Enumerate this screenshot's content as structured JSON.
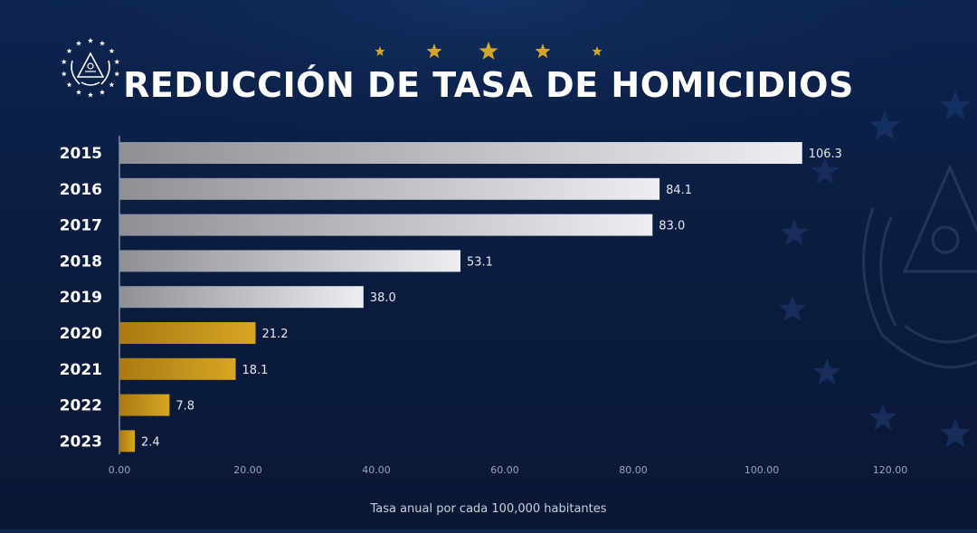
{
  "chart_data": {
    "type": "bar",
    "orientation": "horizontal",
    "title": "REDUCCIÓN DE TASA DE HOMICIDIOS",
    "xlabel": "Tasa anual por cada 100,000 habitantes",
    "categories": [
      "2015",
      "2016",
      "2017",
      "2018",
      "2019",
      "2020",
      "2021",
      "2022",
      "2023"
    ],
    "values": [
      106.3,
      84.1,
      83.0,
      53.1,
      38.0,
      21.2,
      18.1,
      7.8,
      2.4
    ],
    "value_labels": [
      "106.3",
      "84.1",
      "83.0",
      "53.1",
      "38.0",
      "21.2",
      "18.1",
      "7.8",
      "2.4"
    ],
    "xlim": [
      0,
      120
    ],
    "xticks": [
      "0.00",
      "20.00",
      "40.00",
      "60.00",
      "80.00",
      "100.00",
      "120.00"
    ],
    "grid": false,
    "highlight_from_category": "2020",
    "colors": {
      "bar_silver_start": "#8e9096",
      "bar_silver_end": "#eceef2",
      "bar_gold_start": "#a97a12",
      "bar_gold_end": "#d7a624",
      "accent_star": "#d4a62a",
      "text": "#ffffff",
      "tick_text": "#9aa6bf"
    }
  },
  "decor": {
    "header_stars": 5,
    "emblem_icon": "el-salvador-coat-of-arms-icon"
  }
}
